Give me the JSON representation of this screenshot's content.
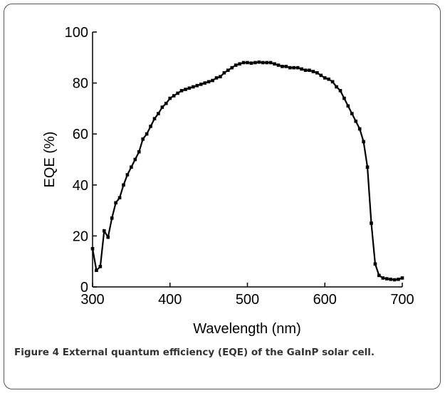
{
  "chart_data": {
    "type": "line",
    "xlabel": "Wavelength (nm)",
    "ylabel": "EQE (%)",
    "x": [
      300,
      305,
      310,
      315,
      320,
      325,
      330,
      335,
      340,
      345,
      350,
      355,
      360,
      365,
      370,
      375,
      380,
      385,
      390,
      395,
      400,
      405,
      410,
      415,
      420,
      425,
      430,
      435,
      440,
      445,
      450,
      455,
      460,
      465,
      470,
      475,
      480,
      485,
      490,
      495,
      500,
      505,
      510,
      515,
      520,
      525,
      530,
      535,
      540,
      545,
      550,
      555,
      560,
      565,
      570,
      575,
      580,
      585,
      590,
      595,
      600,
      605,
      610,
      615,
      620,
      625,
      630,
      635,
      640,
      645,
      650,
      655,
      660,
      665,
      670,
      675,
      680,
      685,
      690,
      695,
      700
    ],
    "series": [
      {
        "color": "#000000",
        "values": [
          15,
          6.5,
          8,
          22,
          19.5,
          27,
          33,
          35,
          40,
          44,
          47,
          50,
          53,
          58,
          60,
          63,
          66,
          68,
          70.5,
          72,
          74,
          75,
          76,
          77,
          77.5,
          78,
          78.5,
          79,
          79.5,
          80,
          80.5,
          81,
          82,
          82.5,
          84,
          85,
          86,
          87,
          87.5,
          88,
          88,
          87.8,
          88,
          88.2,
          88,
          88,
          88,
          87.5,
          87,
          86.5,
          86.5,
          86,
          86,
          86,
          85.5,
          85,
          85,
          84.5,
          84,
          83,
          82,
          81.5,
          80.5,
          78.5,
          77,
          74,
          71,
          68,
          65,
          62,
          57,
          47,
          25,
          9,
          4.5,
          3.5,
          3.2,
          3,
          2.8,
          3,
          3.5
        ]
      }
    ],
    "xlim": [
      300,
      700
    ],
    "ylim": [
      0,
      100
    ],
    "xticks": [
      300,
      400,
      500,
      600,
      700
    ],
    "yticks": [
      0,
      20,
      40,
      60,
      80,
      100
    ]
  },
  "caption": {
    "label": "Figure 4",
    "text": "External quantum efficiency (EQE) of the GaInP solar cell."
  }
}
